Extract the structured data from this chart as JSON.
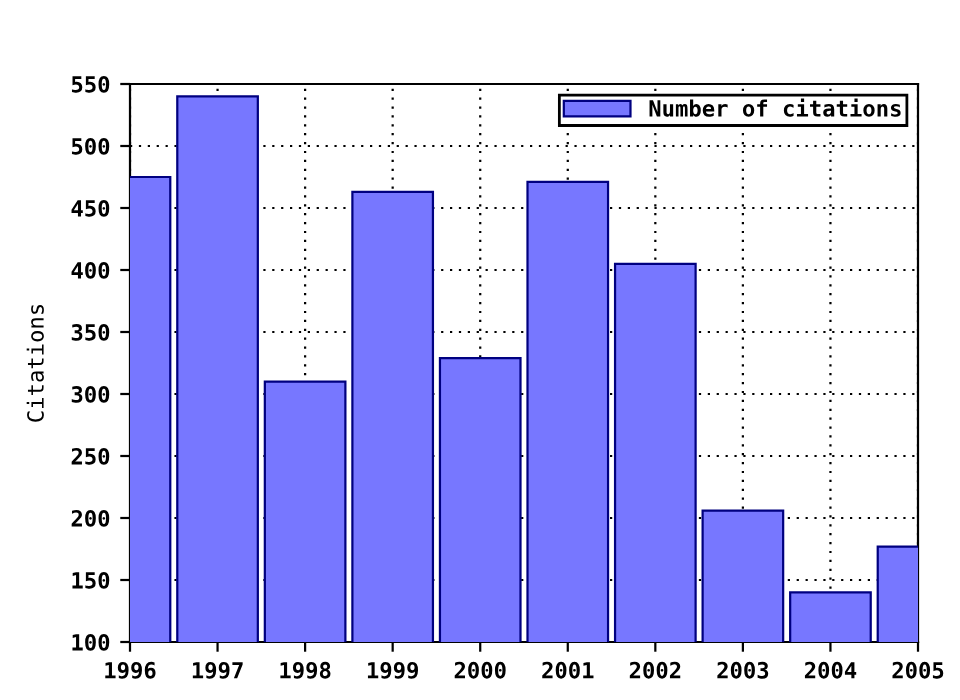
{
  "chart_data": {
    "type": "bar",
    "ylabel": "Citations",
    "x": [
      1996,
      1997,
      1998,
      1999,
      2000,
      2001,
      2002,
      2003,
      2004,
      2005
    ],
    "series": [
      {
        "name": "Number of citations",
        "color": "#7777ff",
        "values": [
          475,
          540,
          310,
          463,
          329,
          471,
          405,
          206,
          140,
          177
        ]
      }
    ],
    "xlim": [
      1996,
      2005
    ],
    "xticks": [
      1996,
      1997,
      1998,
      1999,
      2000,
      2001,
      2002,
      2003,
      2004,
      2005
    ],
    "ylim": [
      100,
      550
    ],
    "yticks": [
      100,
      150,
      200,
      250,
      300,
      350,
      400,
      450,
      500,
      550
    ],
    "grid": true,
    "legend": "top right"
  }
}
